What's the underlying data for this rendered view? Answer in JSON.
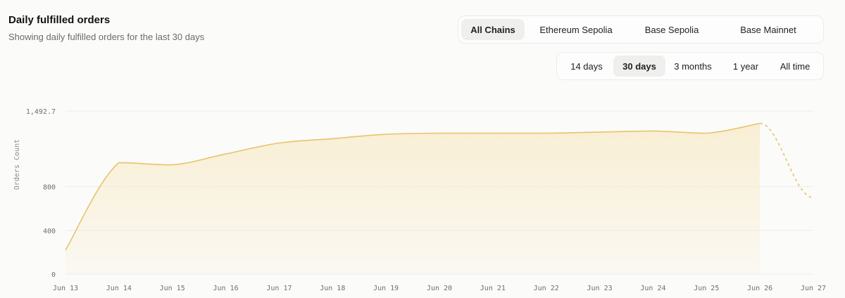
{
  "header": {
    "title": "Daily fulfilled orders",
    "subtitle": "Showing daily fulfilled orders for the last 30 days"
  },
  "chain_filter": {
    "options": [
      "All Chains",
      "Ethereum Sepolia",
      "Base Sepolia",
      "Base Mainnet"
    ],
    "selected": "All Chains"
  },
  "range_filter": {
    "options": [
      "14 days",
      "30 days",
      "3 months",
      "1 year",
      "All time"
    ],
    "selected": "30 days"
  },
  "colors": {
    "line": "#e8c46a",
    "fill": "#f6e4b4",
    "grid": "#ececec"
  },
  "chart_data": {
    "type": "area",
    "ylabel": "Orders Count",
    "xlabel": "",
    "ylim": [
      0,
      1492.7
    ],
    "y_ticks": [
      0,
      400,
      800
    ],
    "y_max_label": "1,492.7",
    "x_tick_labels": [
      "Jun 13",
      "Jun 14",
      "Jun 15",
      "Jun 16",
      "Jun 17",
      "Jun 18",
      "Jun 19",
      "Jun 20",
      "Jun 21",
      "Jun 22",
      "Jun 23",
      "Jun 24",
      "Jun 25",
      "Jun 26",
      "Jun 27"
    ],
    "series": [
      {
        "x": [
          "Jun 13",
          "Jun 14",
          "Jun 15",
          "Jun 16",
          "Jun 17",
          "Jun 18",
          "Jun 19",
          "Jun 20",
          "Jun 21",
          "Jun 22",
          "Jun 23",
          "Jun 24",
          "Jun 25",
          "Jun 26"
        ],
        "values": [
          220,
          1020,
          1000,
          1100,
          1200,
          1240,
          1280,
          1290,
          1290,
          1290,
          1300,
          1310,
          1290,
          1380
        ]
      }
    ],
    "projection": {
      "x": [
        "Jun 26",
        "Jun 27"
      ],
      "values": [
        1380,
        700
      ]
    }
  }
}
